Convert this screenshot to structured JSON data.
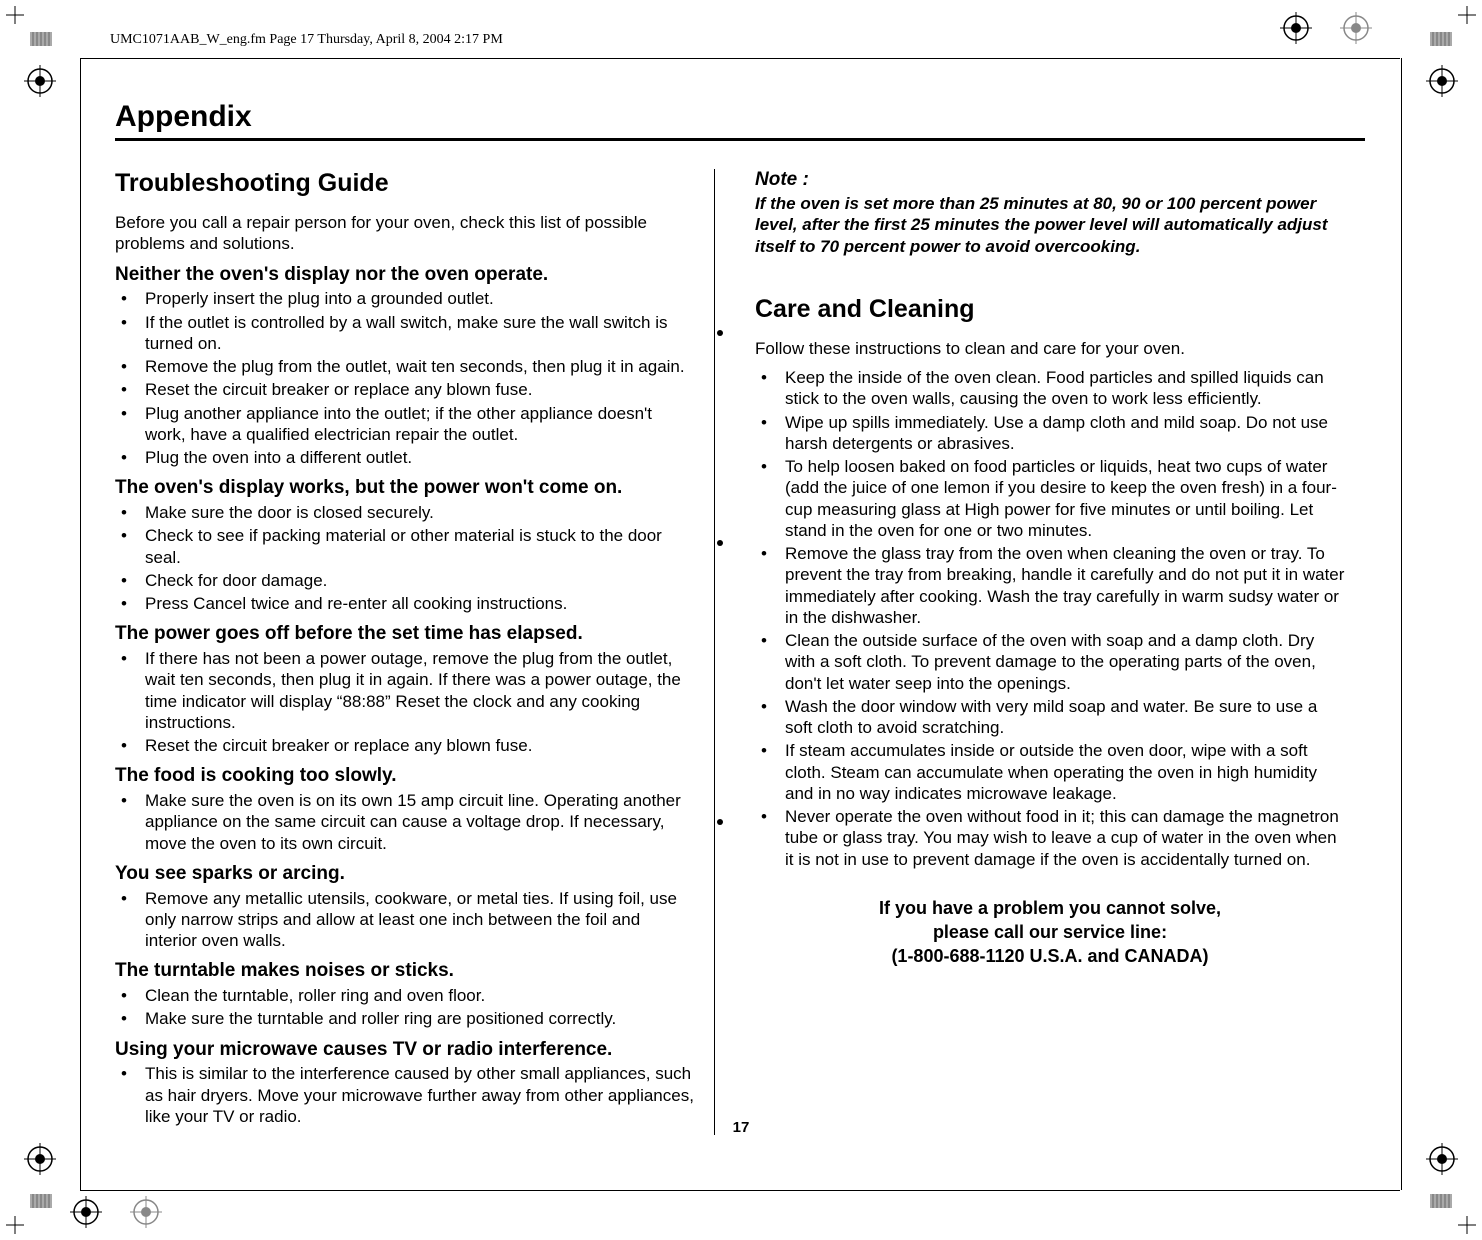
{
  "header_line": "UMC1071AAB_W_eng.fm  Page 17  Thursday, April 8, 2004  2:17 PM",
  "section_title": "Appendix",
  "page_number": "17",
  "left": {
    "title": "Troubleshooting Guide",
    "intro": "Before you call a repair person for your oven, check this list of possible problems and solutions.",
    "groups": [
      {
        "heading": "Neither the oven's display nor the oven operate.",
        "items": [
          "Properly insert the plug into a grounded outlet.",
          "If the outlet is controlled by a wall switch, make sure the wall switch is turned on.",
          "Remove the plug from the outlet, wait ten seconds, then plug it in again.",
          "Reset the circuit breaker or replace any blown fuse.",
          "Plug another appliance into the outlet; if the other appliance doesn't work, have a qualified electrician repair the outlet.",
          "Plug the oven into a different outlet."
        ]
      },
      {
        "heading": "The oven's display works, but the power won't come on.",
        "items": [
          "Make sure the door is closed securely.",
          "Check to see if packing material or other material is stuck to the door seal.",
          "Check for door damage.",
          "Press Cancel twice and re-enter all cooking instructions."
        ]
      },
      {
        "heading": "The power goes off before the set time has elapsed.",
        "items": [
          "If there has not been a power outage, remove the plug from the outlet, wait ten seconds, then plug it in again. If there was a power outage, the time indicator will display “88:88” Reset the clock and any cooking instructions.",
          "Reset the circuit breaker or replace any blown fuse."
        ]
      },
      {
        "heading": "The food is cooking too slowly.",
        "items": [
          "Make sure the oven is on its own 15 amp circuit line. Operating another appliance on the same circuit can cause a voltage drop. If necessary, move the oven to its own circuit."
        ]
      },
      {
        "heading": "You see sparks or arcing.",
        "items": [
          "Remove any metallic utensils, cookware, or metal ties. If using foil, use only narrow strips and allow at least one inch between the foil and interior oven walls."
        ]
      },
      {
        "heading": "The turntable makes noises or sticks.",
        "items": [
          "Clean the turntable, roller ring and oven floor.",
          "Make sure the turntable and roller ring are positioned correctly."
        ]
      },
      {
        "heading": "Using your microwave causes TV or radio interference.",
        "items": [
          "This is similar to the interference caused by other small appliances, such as hair dryers. Move your microwave further away from other appliances, like your TV or radio."
        ]
      }
    ]
  },
  "right": {
    "note_title": "Note :",
    "note_body": "If the oven is set more than 25 minutes at 80, 90 or 100 percent power level, after the first 25 minutes the power level will automatically adjust itself to 70 percent power to avoid overcooking.",
    "title": "Care and Cleaning",
    "intro": "Follow these instructions to clean and care for your oven.",
    "items": [
      "Keep the inside of the oven clean. Food particles and spilled liquids can stick to the oven walls, causing the oven to work less efficiently.",
      "Wipe up spills immediately. Use a damp cloth and mild soap. Do not use harsh detergents or abrasives.",
      "To help loosen baked on food particles or liquids, heat two cups of water (add the juice of one lemon if you desire to keep the oven fresh) in a four-cup measuring glass at High power for five minutes or until boiling. Let stand in the oven for one or two minutes.",
      "Remove the glass tray from the oven when cleaning the oven or tray. To prevent the tray from breaking, handle it carefully and do not put it in water immediately after cooking. Wash the tray carefully in warm sudsy water or in the dishwasher.",
      "Clean the outside surface of the oven with soap and a damp cloth. Dry with a soft cloth. To prevent damage to the operating parts of the oven, don't let water seep into the openings.",
      "Wash the door window with very mild soap and water. Be sure to use a soft cloth to avoid scratching.",
      "If steam accumulates inside or outside the oven door, wipe with a soft cloth. Steam can accumulate when operating the oven in high humidity and in no way indicates microwave leakage.",
      "Never operate the oven without food in it; this can damage the magnetron tube or glass tray. You may wish to leave a cup of water in the oven when it is not in use to prevent damage if the oven is accidentally turned on."
    ],
    "service_lines": [
      "If you have a problem you cannot solve,",
      "please call our service line:",
      "(1-800-688-1120 U.S.A. and CANADA)"
    ]
  }
}
